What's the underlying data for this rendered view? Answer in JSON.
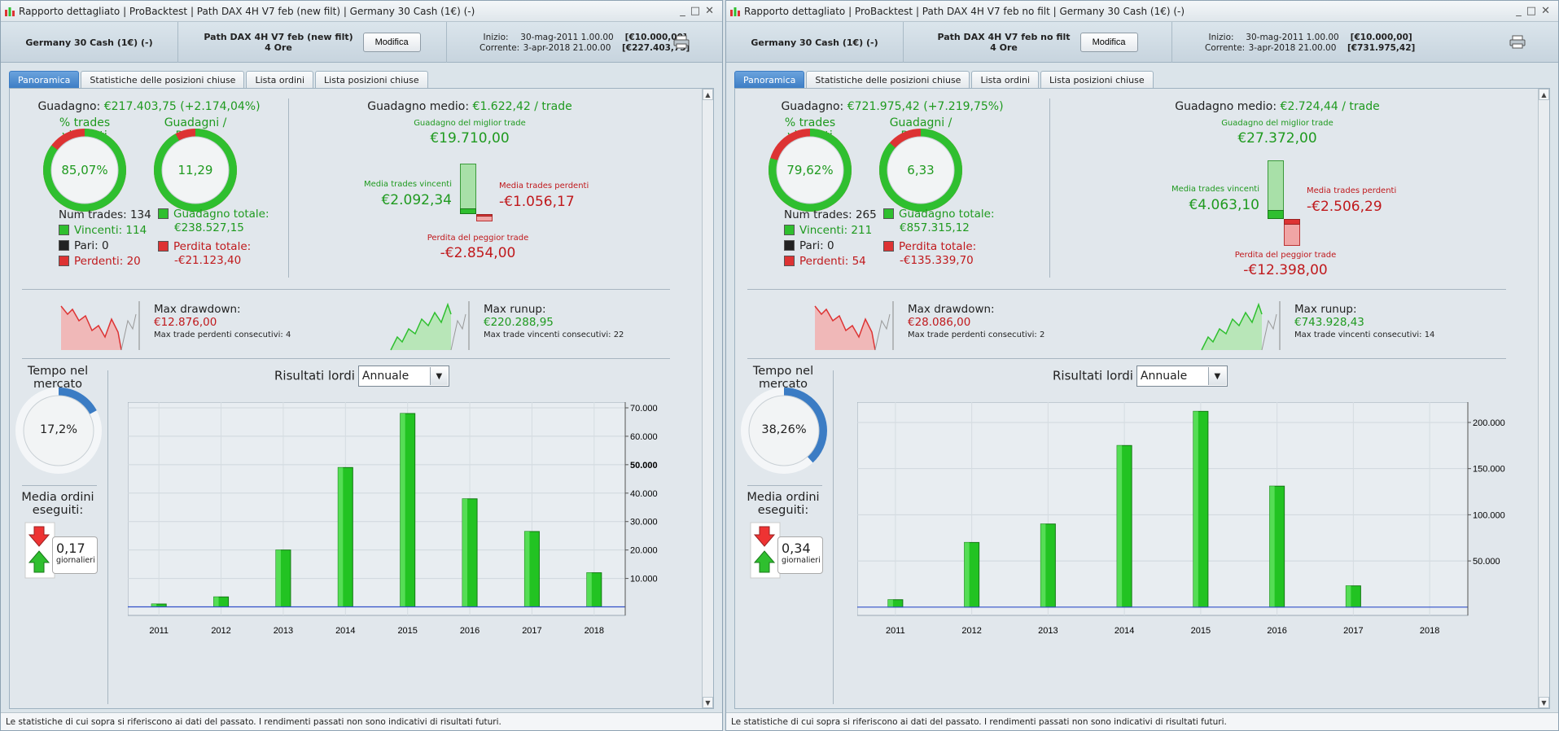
{
  "panels": [
    {
      "titlebar": "Rapporto dettagliato  |  ProBacktest  |  Path DAX 4H V7 feb (new filt)  |  Germany 30 Cash (1€) (-)",
      "header": {
        "instrument": "Germany 30 Cash (1€) (-)",
        "strategy_line1": "Path DAX 4H V7 feb (new filt)",
        "strategy_line2": "4 Ore",
        "modify_label": "Modifica",
        "start_label": "Inizio:",
        "start_date": "30-mag-2011 1.00.00",
        "start_value": "[€10.000,00]",
        "current_label": "Corrente:",
        "current_date": "3-apr-2018 21.00.00",
        "current_value": "[€227.403,75]"
      },
      "tabs": [
        "Panoramica",
        "Statistiche delle posizioni chiuse",
        "Lista ordini",
        "Lista posizioni chiuse"
      ],
      "gain_label": "Guadagno:",
      "gain_value": "€217.403,75 (+2.174,04%)",
      "win_pct_title": "% trades vincenti",
      "win_pct_value": "85,07%",
      "win_fraction": 0.8507,
      "gl_title": "Guadagni / Perdite",
      "gl_value": "11,29",
      "gl_fraction": 0.9186,
      "num_trades": "Num trades: 134",
      "winners": "Vincenti: 114",
      "even": "Pari: 0",
      "losers": "Perdenti: 20",
      "total_gain_label": "Guadagno totale:",
      "total_gain": "€238.527,15",
      "total_loss_label": "Perdita totale:",
      "total_loss": "-€21.123,40",
      "avg_gain_label": "Guadagno medio:",
      "avg_gain_value": "€1.622,42 / trade",
      "best_trade_label": "Guadagno del miglior trade",
      "best_trade": "€19.710,00",
      "avg_win_label": "Media trades vincenti",
      "avg_win": "€2.092,34",
      "avg_loss_label": "Media trades perdenti",
      "avg_loss": "-€1.056,17",
      "worst_trade_label": "Perdita del peggior trade",
      "worst_trade": "-€2.854,00",
      "bars_scale": {
        "best": 19710,
        "avg_win": 2092.34,
        "avg_loss": 1056.17,
        "worst": 2854
      },
      "dd_label": "Max drawdown:",
      "dd_value": "€12.876,00",
      "dd_sub": "Max trade perdenti consecutivi:  4",
      "ru_label": "Max runup:",
      "ru_value": "€220.288,95",
      "ru_sub": "Max trade vincenti consecutivi: 22",
      "time_label": "Tempo nel mercato",
      "time_value": "17,2%",
      "time_fraction": 0.172,
      "orders_label": "Media ordini eseguiti:",
      "orders_value": "0,17",
      "orders_unit": "giornalieri",
      "results_label": "Risultati lordi",
      "period_select": "Annuale",
      "footer": "Le statistiche di cui sopra si riferiscono ai dati del passato. I rendimenti passati non sono indicativi di risultati futuri.",
      "chart_data": {
        "type": "bar",
        "categories": [
          "2011",
          "2012",
          "2013",
          "2014",
          "2015",
          "2016",
          "2017",
          "2018"
        ],
        "values": [
          1000,
          3500,
          20000,
          49000,
          68000,
          38000,
          26500,
          12000
        ],
        "ylim": [
          -3000,
          72000
        ],
        "yticks": [
          10000,
          20000,
          30000,
          40000,
          50000,
          60000,
          70000
        ],
        "ytick_labels": [
          "10.000",
          "20.000",
          "30.000",
          "40.000",
          "50.000",
          "60.000",
          "70.000"
        ],
        "bold_tick": "50.000"
      }
    },
    {
      "titlebar": "Rapporto dettagliato  |  ProBacktest  |  Path DAX 4H V7 feb no filt  |  Germany 30 Cash (1€) (-)",
      "header": {
        "instrument": "Germany 30 Cash (1€) (-)",
        "strategy_line1": "Path DAX 4H V7 feb no filt",
        "strategy_line2": "4 Ore",
        "modify_label": "Modifica",
        "start_label": "Inizio:",
        "start_date": "30-mag-2011 1.00.00",
        "start_value": "[€10.000,00]",
        "current_label": "Corrente:",
        "current_date": "3-apr-2018 21.00.00",
        "current_value": "[€731.975,42]"
      },
      "tabs": [
        "Panoramica",
        "Statistiche delle posizioni chiuse",
        "Lista ordini",
        "Lista posizioni chiuse"
      ],
      "gain_label": "Guadagno:",
      "gain_value": "€721.975,42 (+7.219,75%)",
      "win_pct_title": "% trades vincenti",
      "win_pct_value": "79,62%",
      "win_fraction": 0.7962,
      "gl_title": "Guadagni / Perdite",
      "gl_value": "6,33",
      "gl_fraction": 0.8636,
      "num_trades": "Num trades: 265",
      "winners": "Vincenti: 211",
      "even": "Pari: 0",
      "losers": "Perdenti: 54",
      "total_gain_label": "Guadagno totale:",
      "total_gain": "€857.315,12",
      "total_loss_label": "Perdita totale:",
      "total_loss": "-€135.339,70",
      "avg_gain_label": "Guadagno medio:",
      "avg_gain_value": "€2.724,44 / trade",
      "best_trade_label": "Guadagno del miglior trade",
      "best_trade": "€27.372,00",
      "avg_win_label": "Media trades vincenti",
      "avg_win": "€4.063,10",
      "avg_loss_label": "Media trades perdenti",
      "avg_loss": "-€2.506,29",
      "worst_trade_label": "Perdita del peggior trade",
      "worst_trade": "-€12.398,00",
      "bars_scale": {
        "best": 27372,
        "avg_win": 4063.1,
        "avg_loss": 2506.29,
        "worst": 12398
      },
      "dd_label": "Max drawdown:",
      "dd_value": "€28.086,00",
      "dd_sub": "Max trade perdenti consecutivi:  2",
      "ru_label": "Max runup:",
      "ru_value": "€743.928,43",
      "ru_sub": "Max trade vincenti consecutivi: 14",
      "time_label": "Tempo nel mercato",
      "time_value": "38,26%",
      "time_fraction": 0.3826,
      "orders_label": "Media ordini eseguiti:",
      "orders_value": "0,34",
      "orders_unit": "giornalieri",
      "results_label": "Risultati lordi",
      "period_select": "Annuale",
      "footer": "Le statistiche di cui sopra si riferiscono ai dati del passato. I rendimenti passati non sono indicativi di risultati futuri.",
      "chart_data": {
        "type": "bar",
        "categories": [
          "2011",
          "2012",
          "2013",
          "2014",
          "2015",
          "2016",
          "2017",
          "2018"
        ],
        "values": [
          8000,
          70000,
          90000,
          175000,
          212000,
          131000,
          23000,
          0
        ],
        "ylim": [
          -9000,
          222000
        ],
        "yticks": [
          50000,
          100000,
          150000,
          200000
        ],
        "ytick_labels": [
          "50.000",
          "100.000",
          "150.000",
          "200.000"
        ],
        "bold_tick": ""
      }
    }
  ],
  "colors": {
    "win": "#2fbf2f",
    "loss": "#d33",
    "blue": "#3b7cc4",
    "green_text": "#1f9a1f",
    "red_text": "#c0191c"
  },
  "icons": {
    "app": "pro-realtime-icon",
    "printer": "printer-icon",
    "minimize": "minimize-icon",
    "maximize": "maximize-icon",
    "close": "close-icon",
    "up_arrow": "green-up-arrow-icon",
    "down_arrow": "red-down-arrow-icon",
    "dropdown": "chevron-down-icon"
  }
}
